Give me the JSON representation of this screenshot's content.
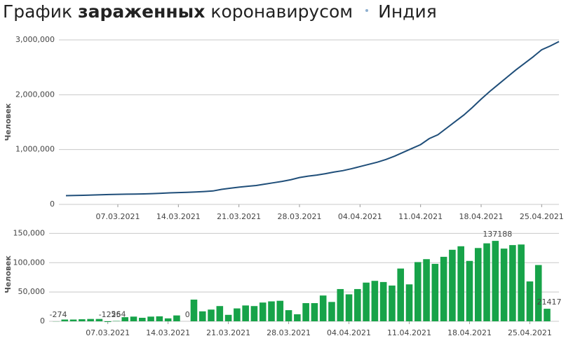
{
  "title": {
    "prefix": "График",
    "emphasis": "зараженных",
    "suffix": "коронавирусом",
    "country": "Индия"
  },
  "chart_data": [
    {
      "type": "line",
      "y_label": "Человек",
      "color": "#1f4e79",
      "grid": true,
      "x": [
        "01.03.2021",
        "02.03.2021",
        "03.03.2021",
        "04.03.2021",
        "05.03.2021",
        "06.03.2021",
        "07.03.2021",
        "08.03.2021",
        "09.03.2021",
        "10.03.2021",
        "11.03.2021",
        "12.03.2021",
        "13.03.2021",
        "14.03.2021",
        "15.03.2021",
        "16.03.2021",
        "17.03.2021",
        "18.03.2021",
        "19.03.2021",
        "20.03.2021",
        "21.03.2021",
        "22.03.2021",
        "23.03.2021",
        "24.03.2021",
        "25.03.2021",
        "26.03.2021",
        "27.03.2021",
        "28.03.2021",
        "29.03.2021",
        "30.03.2021",
        "31.03.2021",
        "01.04.2021",
        "02.04.2021",
        "03.04.2021",
        "04.04.2021",
        "05.04.2021",
        "06.04.2021",
        "07.04.2021",
        "08.04.2021",
        "09.04.2021",
        "10.04.2021",
        "11.04.2021",
        "12.04.2021",
        "13.04.2021",
        "14.04.2021",
        "15.04.2021",
        "16.04.2021",
        "17.04.2021",
        "18.04.2021",
        "19.04.2021",
        "20.04.2021",
        "21.04.2021",
        "22.04.2021",
        "23.04.2021",
        "24.04.2021",
        "25.04.2021",
        "26.04.2021",
        "27.04.2021"
      ],
      "values": [
        160000,
        163000,
        166000,
        170000,
        175000,
        180000,
        183000,
        186000,
        188000,
        192000,
        197000,
        203000,
        210000,
        215000,
        220000,
        226000,
        235000,
        245000,
        275000,
        295000,
        315000,
        330000,
        345000,
        370000,
        395000,
        420000,
        450000,
        490000,
        515000,
        535000,
        560000,
        590000,
        615000,
        650000,
        690000,
        730000,
        770000,
        820000,
        880000,
        950000,
        1020000,
        1090000,
        1200000,
        1270000,
        1390000,
        1510000,
        1630000,
        1770000,
        1920000,
        2060000,
        2190000,
        2320000,
        2450000,
        2570000,
        2690000,
        2820000,
        2890000,
        2970000
      ],
      "ylim": [
        0,
        3000000
      ],
      "yticks": [
        0,
        {
          "value": 1000000,
          "label": "1,000,000"
        },
        {
          "value": 2000000,
          "label": "2,000,000"
        },
        {
          "value": 3000000,
          "label": "3,000,000"
        }
      ],
      "xticks": [
        "07.03.2021",
        "14.03.2021",
        "21.03.2021",
        "28.03.2021",
        "04.04.2021",
        "11.04.2021",
        "18.04.2021",
        "25.04.2021"
      ]
    },
    {
      "type": "bar",
      "y_label": "Человек",
      "color": "#17a349",
      "grid": true,
      "x": [
        "01.03.2021",
        "02.03.2021",
        "03.03.2021",
        "04.03.2021",
        "05.03.2021",
        "06.03.2021",
        "07.03.2021",
        "08.03.2021",
        "09.03.2021",
        "10.03.2021",
        "11.03.2021",
        "12.03.2021",
        "13.03.2021",
        "14.03.2021",
        "15.03.2021",
        "16.03.2021",
        "17.03.2021",
        "18.03.2021",
        "19.03.2021",
        "20.03.2021",
        "21.03.2021",
        "22.03.2021",
        "23.03.2021",
        "24.03.2021",
        "25.03.2021",
        "26.03.2021",
        "27.03.2021",
        "28.03.2021",
        "29.03.2021",
        "30.03.2021",
        "31.03.2021",
        "01.04.2021",
        "02.04.2021",
        "03.04.2021",
        "04.04.2021",
        "05.04.2021",
        "06.04.2021",
        "07.04.2021",
        "08.04.2021",
        "09.04.2021",
        "10.04.2021",
        "11.04.2021",
        "12.04.2021",
        "13.04.2021",
        "14.04.2021",
        "15.04.2021",
        "16.04.2021",
        "17.04.2021",
        "18.04.2021",
        "19.04.2021",
        "20.04.2021",
        "21.04.2021",
        "22.04.2021",
        "23.04.2021",
        "24.04.2021",
        "25.04.2021",
        "26.04.2021",
        "27.04.2021"
      ],
      "values": [
        -274,
        3000,
        3000,
        3500,
        4000,
        4000,
        -1225,
        564,
        7000,
        8000,
        6000,
        8000,
        8500,
        5000,
        10000,
        0,
        37000,
        17000,
        20000,
        26000,
        11000,
        22000,
        27000,
        26000,
        32000,
        34000,
        35000,
        19000,
        12000,
        31000,
        31000,
        44000,
        33000,
        55000,
        46000,
        55000,
        66000,
        69000,
        67000,
        61000,
        90000,
        63000,
        101000,
        106000,
        98000,
        110000,
        122000,
        128000,
        103000,
        125000,
        133000,
        137188,
        124000,
        130000,
        131000,
        68000,
        96000,
        21417
      ],
      "value_labels": [
        "-274",
        null,
        null,
        null,
        null,
        null,
        "-1225",
        "564",
        null,
        null,
        null,
        null,
        null,
        null,
        null,
        "0",
        null,
        null,
        null,
        null,
        null,
        null,
        null,
        null,
        null,
        null,
        null,
        null,
        null,
        null,
        null,
        null,
        null,
        null,
        null,
        null,
        null,
        null,
        null,
        null,
        null,
        null,
        null,
        null,
        null,
        null,
        null,
        null,
        null,
        null,
        null,
        "137188",
        null,
        null,
        null,
        null,
        null,
        "21417"
      ],
      "ylim": [
        0,
        160000
      ],
      "yticks": [
        0,
        {
          "value": 50000,
          "label": "50,000"
        },
        {
          "value": 100000,
          "label": "100,000"
        },
        {
          "value": 150000,
          "label": "150,000"
        }
      ],
      "xticks": [
        "07.03.2021",
        "14.03.2021",
        "21.03.2021",
        "28.03.2021",
        "04.04.2021",
        "11.04.2021",
        "18.04.2021",
        "25.04.2021"
      ]
    }
  ]
}
